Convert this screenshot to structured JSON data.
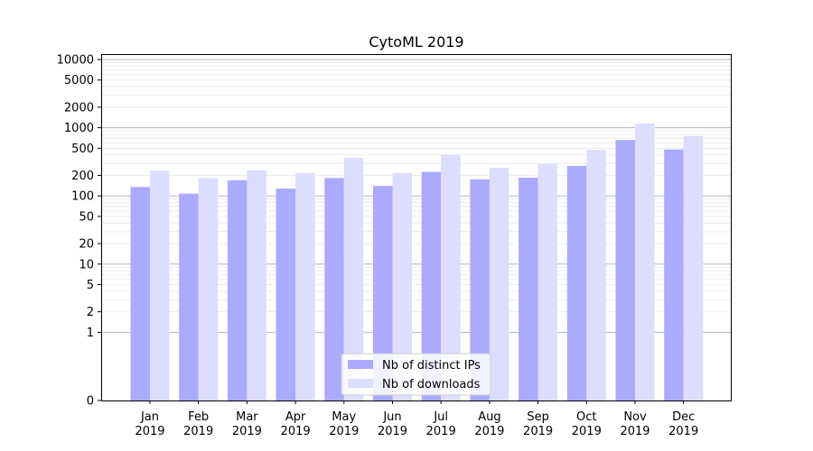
{
  "chart_data": {
    "type": "bar",
    "title": "CytoML 2019",
    "xlabel": "",
    "ylabel": "",
    "yscale": "symlog",
    "ylim": [
      0,
      12000
    ],
    "yticks": [
      0,
      1,
      2,
      5,
      10,
      20,
      50,
      100,
      200,
      500,
      1000,
      2000,
      5000,
      10000
    ],
    "ytick_labels": [
      "0",
      "1",
      "2",
      "5",
      "10",
      "20",
      "50",
      "100",
      "200",
      "500",
      "1000",
      "2000",
      "5000",
      "10000"
    ],
    "categories": [
      "Jan\n2019",
      "Feb\n2019",
      "Mar\n2019",
      "Apr\n2019",
      "May\n2019",
      "Jun\n2019",
      "Jul\n2019",
      "Aug\n2019",
      "Sep\n2019",
      "Oct\n2019",
      "Nov\n2019",
      "Dec\n2019"
    ],
    "series": [
      {
        "name": "Nb of distinct IPs",
        "color": "#aaaaff",
        "values": [
          135,
          108,
          170,
          128,
          183,
          140,
          225,
          175,
          185,
          275,
          660,
          480
        ]
      },
      {
        "name": "Nb of downloads",
        "color": "#ddddff",
        "values": [
          235,
          182,
          237,
          218,
          360,
          217,
          398,
          258,
          295,
          475,
          1160,
          760
        ]
      }
    ],
    "legend_position": "lower center",
    "grid": "y major and minor"
  }
}
